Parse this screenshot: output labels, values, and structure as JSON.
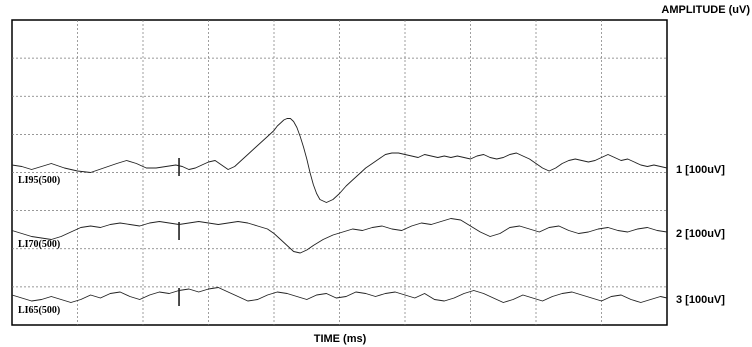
{
  "chart_data": {
    "type": "line",
    "title": "",
    "xlabel": "TIME (ms)",
    "ylabel": "AMPLITUDE (uV)",
    "grid": true,
    "x_divisions": 10,
    "y_divisions": 8,
    "series": [
      {
        "name": "LI95(500)",
        "scale_label": "1 [100uV]",
        "stimulus_marker_x": 2.55,
        "x": [
          0,
          0.15,
          0.3,
          0.45,
          0.6,
          0.8,
          1.0,
          1.2,
          1.4,
          1.6,
          1.75,
          1.9,
          2.05,
          2.2,
          2.35,
          2.5,
          2.6,
          2.7,
          2.8,
          2.9,
          3.0,
          3.1,
          3.2,
          3.3,
          3.4,
          3.5,
          3.6,
          3.7,
          3.8,
          3.9,
          4.0,
          4.05,
          4.1,
          4.15,
          4.2,
          4.25,
          4.3,
          4.35,
          4.4,
          4.45,
          4.5,
          4.55,
          4.6,
          4.65,
          4.7,
          4.8,
          4.9,
          5.0,
          5.1,
          5.2,
          5.3,
          5.4,
          5.5,
          5.6,
          5.7,
          5.8,
          5.9,
          6.0,
          6.1,
          6.2,
          6.3,
          6.4,
          6.5,
          6.6,
          6.7,
          6.8,
          6.9,
          7.0,
          7.1,
          7.2,
          7.3,
          7.4,
          7.5,
          7.6,
          7.7,
          7.8,
          7.9,
          8.0,
          8.1,
          8.2,
          8.3,
          8.4,
          8.5,
          8.6,
          8.7,
          8.8,
          8.9,
          9.0,
          9.1,
          9.2,
          9.3,
          9.4,
          9.5,
          9.6,
          9.7,
          9.8,
          9.9,
          10.0
        ],
        "y": [
          0.2,
          0.1,
          -0.1,
          0.1,
          0.3,
          0.0,
          -0.2,
          -0.3,
          0.0,
          0.3,
          0.5,
          0.3,
          0.0,
          0.0,
          0.1,
          0.2,
          0.1,
          -0.1,
          0.0,
          0.2,
          0.4,
          0.5,
          0.2,
          -0.1,
          0.1,
          0.5,
          0.9,
          1.3,
          1.7,
          2.1,
          2.5,
          2.8,
          3.0,
          3.2,
          3.3,
          3.3,
          3.1,
          2.7,
          2.1,
          1.4,
          0.6,
          -0.3,
          -1.1,
          -1.7,
          -2.1,
          -2.3,
          -2.1,
          -1.7,
          -1.2,
          -0.8,
          -0.4,
          0.0,
          0.3,
          0.6,
          0.9,
          1.0,
          1.0,
          0.9,
          0.8,
          0.7,
          0.9,
          0.8,
          0.7,
          0.8,
          0.7,
          0.8,
          0.7,
          0.6,
          0.8,
          0.9,
          0.7,
          0.6,
          0.7,
          0.9,
          1.0,
          0.8,
          0.6,
          0.3,
          0.0,
          -0.2,
          0.0,
          0.3,
          0.5,
          0.6,
          0.5,
          0.4,
          0.5,
          0.7,
          0.9,
          0.7,
          0.5,
          0.6,
          0.4,
          0.2,
          0.1,
          0.2,
          0.1,
          0.0
        ]
      },
      {
        "name": "LI70(500)",
        "scale_label": "2 [100uV]",
        "stimulus_marker_x": 2.55,
        "x": [
          0,
          0.15,
          0.3,
          0.45,
          0.6,
          0.75,
          0.9,
          1.05,
          1.2,
          1.35,
          1.5,
          1.65,
          1.8,
          1.95,
          2.1,
          2.25,
          2.4,
          2.55,
          2.7,
          2.85,
          3.0,
          3.15,
          3.3,
          3.45,
          3.6,
          3.75,
          3.9,
          4.0,
          4.1,
          4.2,
          4.3,
          4.4,
          4.5,
          4.6,
          4.75,
          4.9,
          5.05,
          5.2,
          5.35,
          5.5,
          5.65,
          5.8,
          5.95,
          6.1,
          6.25,
          6.4,
          6.55,
          6.7,
          6.85,
          7.0,
          7.15,
          7.3,
          7.45,
          7.6,
          7.75,
          7.9,
          8.05,
          8.2,
          8.35,
          8.5,
          8.65,
          8.8,
          8.95,
          9.1,
          9.25,
          9.4,
          9.55,
          9.7,
          9.85,
          10.0
        ],
        "y": [
          0.1,
          -0.1,
          -0.3,
          -0.4,
          -0.5,
          -0.3,
          0.0,
          0.3,
          0.4,
          0.3,
          0.5,
          0.6,
          0.5,
          0.4,
          0.6,
          0.7,
          0.6,
          0.5,
          0.6,
          0.7,
          0.6,
          0.5,
          0.6,
          0.7,
          0.6,
          0.4,
          0.2,
          -0.1,
          -0.5,
          -0.9,
          -1.3,
          -1.4,
          -1.2,
          -0.9,
          -0.5,
          -0.2,
          0.0,
          0.2,
          0.1,
          0.3,
          0.4,
          0.2,
          0.1,
          0.4,
          0.6,
          0.5,
          0.7,
          0.9,
          0.8,
          0.4,
          0.0,
          -0.3,
          -0.1,
          0.3,
          0.4,
          0.2,
          0.0,
          0.3,
          0.4,
          0.1,
          -0.1,
          0.0,
          0.2,
          0.3,
          0.1,
          0.0,
          0.2,
          0.3,
          0.1,
          0.0
        ]
      },
      {
        "name": "LI65(500)",
        "scale_label": "3 [100uV]",
        "stimulus_marker_x": 2.55,
        "x": [
          0,
          0.15,
          0.3,
          0.45,
          0.6,
          0.75,
          0.9,
          1.05,
          1.2,
          1.35,
          1.5,
          1.65,
          1.8,
          1.95,
          2.1,
          2.25,
          2.4,
          2.55,
          2.7,
          2.85,
          3.0,
          3.15,
          3.3,
          3.45,
          3.6,
          3.75,
          3.9,
          4.05,
          4.2,
          4.35,
          4.5,
          4.65,
          4.8,
          4.95,
          5.1,
          5.25,
          5.4,
          5.55,
          5.7,
          5.85,
          6.0,
          6.15,
          6.3,
          6.45,
          6.6,
          6.75,
          6.9,
          7.05,
          7.2,
          7.35,
          7.5,
          7.65,
          7.8,
          7.95,
          8.1,
          8.25,
          8.4,
          8.55,
          8.7,
          8.85,
          9.0,
          9.15,
          9.3,
          9.45,
          9.6,
          9.75,
          9.9,
          10.0
        ],
        "y": [
          0.2,
          0.0,
          -0.2,
          -0.1,
          0.1,
          -0.1,
          -0.3,
          -0.1,
          0.2,
          0.0,
          0.3,
          0.4,
          0.1,
          -0.1,
          0.2,
          0.4,
          0.3,
          0.5,
          0.6,
          0.4,
          0.6,
          0.7,
          0.4,
          0.1,
          -0.2,
          -0.1,
          0.2,
          0.4,
          0.3,
          0.1,
          -0.1,
          0.2,
          0.3,
          0.0,
          0.1,
          0.4,
          0.3,
          0.1,
          0.3,
          0.4,
          0.2,
          0.0,
          0.3,
          -0.1,
          -0.2,
          0.0,
          0.3,
          0.5,
          0.3,
          0.0,
          -0.3,
          -0.1,
          0.2,
          0.0,
          -0.2,
          0.1,
          0.3,
          0.4,
          0.2,
          0.0,
          -0.2,
          0.1,
          0.2,
          -0.1,
          -0.3,
          -0.1,
          0.1,
          0.0
        ]
      }
    ]
  }
}
